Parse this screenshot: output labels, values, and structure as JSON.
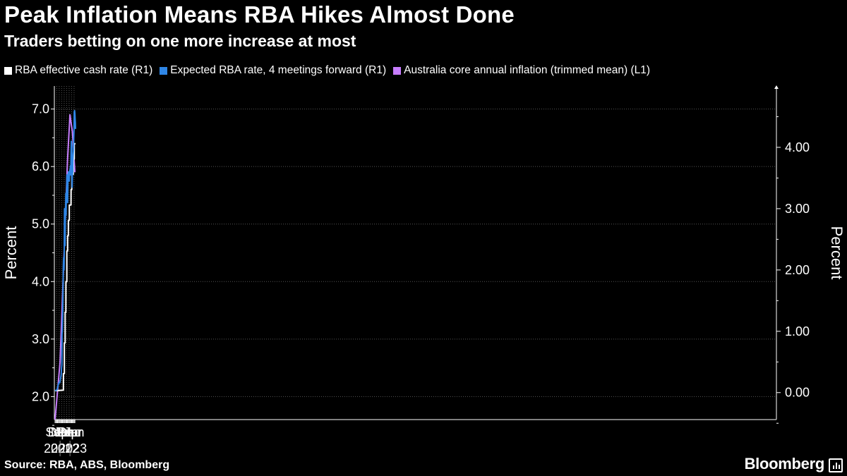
{
  "chart_data": {
    "type": "line",
    "title": "Peak Inflation Means RBA Hikes Almost Done",
    "subtitle": "Traders betting on one more increase at most",
    "source": "Source: RBA, ABS, Bloomberg",
    "brand": "Bloomberg",
    "left_axis": {
      "label": "Percent",
      "ticks": [
        "2.0",
        "3.0",
        "4.0",
        "5.0",
        "6.0",
        "7.0"
      ],
      "range": [
        1.6,
        7.4
      ]
    },
    "right_axis": {
      "label": "Percent",
      "ticks": [
        "0.00",
        "1.00",
        "2.00",
        "3.00",
        "4.00"
      ],
      "range": [
        -0.44,
        5.0
      ]
    },
    "x_axis": {
      "month_labels": [
        "Sep",
        "Dec",
        "Mar",
        "Jun",
        "Sep",
        "Dec",
        "Mar",
        "Jun"
      ],
      "year_labels": [
        "2021",
        "2022",
        "2023"
      ]
    },
    "series": [
      {
        "name": "RBA effective cash rate (R1)",
        "color": "#ffffff",
        "axis": "right",
        "points": [
          [
            "2021-06-30",
            0.03
          ],
          [
            "2022-05-04",
            0.04
          ],
          [
            "2022-05-05",
            0.31
          ],
          [
            "2022-06-08",
            0.31
          ],
          [
            "2022-06-09",
            0.81
          ],
          [
            "2022-07-06",
            0.81
          ],
          [
            "2022-07-07",
            1.31
          ],
          [
            "2022-08-03",
            1.31
          ],
          [
            "2022-08-04",
            1.81
          ],
          [
            "2022-09-07",
            1.81
          ],
          [
            "2022-09-08",
            2.31
          ],
          [
            "2022-10-05",
            2.31
          ],
          [
            "2022-10-06",
            2.56
          ],
          [
            "2022-11-02",
            2.56
          ],
          [
            "2022-11-03",
            2.81
          ],
          [
            "2022-12-07",
            2.81
          ],
          [
            "2022-12-08",
            3.06
          ],
          [
            "2023-02-08",
            3.06
          ],
          [
            "2023-02-09",
            3.31
          ],
          [
            "2023-03-08",
            3.31
          ],
          [
            "2023-03-09",
            3.56
          ],
          [
            "2023-05-03",
            3.56
          ],
          [
            "2023-05-04",
            3.81
          ],
          [
            "2023-06-07",
            3.81
          ],
          [
            "2023-06-08",
            4.06
          ],
          [
            "2023-07-25",
            4.06
          ]
        ]
      },
      {
        "name": "Expected RBA rate, 4 meetings forward (R1)",
        "color": "#2f86e6",
        "axis": "right",
        "points": [
          [
            "2021-06-30",
            0.03
          ],
          [
            "2021-08-15",
            0.04
          ],
          [
            "2021-09-15",
            0.05
          ],
          [
            "2021-10-10",
            0.1
          ],
          [
            "2021-11-01",
            0.14
          ],
          [
            "2021-12-01",
            0.17
          ],
          [
            "2021-12-20",
            0.16
          ],
          [
            "2022-01-15",
            0.22
          ],
          [
            "2022-02-10",
            0.29
          ],
          [
            "2022-02-25",
            0.4
          ],
          [
            "2022-03-10",
            0.45
          ],
          [
            "2022-03-15",
            0.95
          ],
          [
            "2022-03-25",
            1.0
          ],
          [
            "2022-04-08",
            1.25
          ],
          [
            "2022-04-20",
            1.7
          ],
          [
            "2022-05-01",
            2.05
          ],
          [
            "2022-05-10",
            2.2
          ],
          [
            "2022-05-20",
            2.05
          ],
          [
            "2022-05-25",
            2.0
          ],
          [
            "2022-06-01",
            2.1
          ],
          [
            "2022-06-08",
            2.7
          ],
          [
            "2022-06-14",
            3.0
          ],
          [
            "2022-06-20",
            2.6
          ],
          [
            "2022-06-27",
            2.5
          ],
          [
            "2022-07-05",
            2.4
          ],
          [
            "2022-07-15",
            2.9
          ],
          [
            "2022-07-25",
            3.05
          ],
          [
            "2022-08-01",
            3.25
          ],
          [
            "2022-08-10",
            2.9
          ],
          [
            "2022-08-20",
            3.2
          ],
          [
            "2022-09-01",
            3.35
          ],
          [
            "2022-09-10",
            3.55
          ],
          [
            "2022-09-20",
            3.4
          ],
          [
            "2022-09-28",
            3.55
          ],
          [
            "2022-10-01",
            3.2
          ],
          [
            "2022-10-05",
            3.1
          ],
          [
            "2022-10-15",
            3.4
          ],
          [
            "2022-10-25",
            3.55
          ],
          [
            "2022-11-05",
            3.6
          ],
          [
            "2022-11-15",
            3.5
          ],
          [
            "2022-12-05",
            3.45
          ],
          [
            "2022-12-15",
            3.6
          ],
          [
            "2023-01-10",
            3.65
          ],
          [
            "2023-01-20",
            3.7
          ],
          [
            "2023-02-01",
            3.55
          ],
          [
            "2023-02-10",
            3.9
          ],
          [
            "2023-02-20",
            4.1
          ],
          [
            "2023-02-28",
            4.05
          ],
          [
            "2023-03-06",
            4.0
          ],
          [
            "2023-03-12",
            3.55
          ],
          [
            "2023-03-20",
            3.35
          ],
          [
            "2023-03-28",
            3.55
          ],
          [
            "2023-04-10",
            3.6
          ],
          [
            "2023-04-20",
            3.8
          ],
          [
            "2023-05-01",
            3.9
          ],
          [
            "2023-05-10",
            3.95
          ],
          [
            "2023-05-20",
            4.15
          ],
          [
            "2023-05-30",
            4.3
          ],
          [
            "2023-06-08",
            4.58
          ],
          [
            "2023-06-20",
            4.6
          ],
          [
            "2023-07-01",
            4.55
          ],
          [
            "2023-07-10",
            4.45
          ],
          [
            "2023-07-20",
            4.4
          ],
          [
            "2023-07-25",
            4.3
          ]
        ]
      },
      {
        "name": "Australia core annual inflation (trimmed mean) (L1)",
        "color": "#c77dff",
        "axis": "left",
        "points": [
          [
            "2021-06-30",
            1.6
          ],
          [
            "2021-12-31",
            2.6
          ],
          [
            "2022-09-30",
            6.1
          ],
          [
            "2022-12-31",
            6.9
          ],
          [
            "2023-03-31",
            6.6
          ],
          [
            "2023-06-30",
            5.9
          ]
        ]
      }
    ]
  }
}
